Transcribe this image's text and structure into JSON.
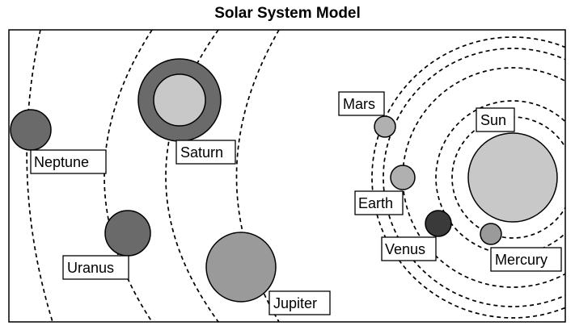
{
  "title": "Solar System Model",
  "colors": {
    "sun": "#c8c8c8",
    "inner_light": "#b0b0b0",
    "outer_dark": "#6a6a6a",
    "jupiter": "#9a9a9a",
    "venus": "#3a3a3a",
    "saturn_ring": "#6a6a6a",
    "saturn_body": "#c8c8c8"
  },
  "bodies": {
    "sun": "Sun",
    "mercury": "Mercury",
    "venus": "Venus",
    "earth": "Earth",
    "mars": "Mars",
    "jupiter": "Jupiter",
    "saturn": "Saturn",
    "uranus": "Uranus",
    "neptune": "Neptune"
  }
}
